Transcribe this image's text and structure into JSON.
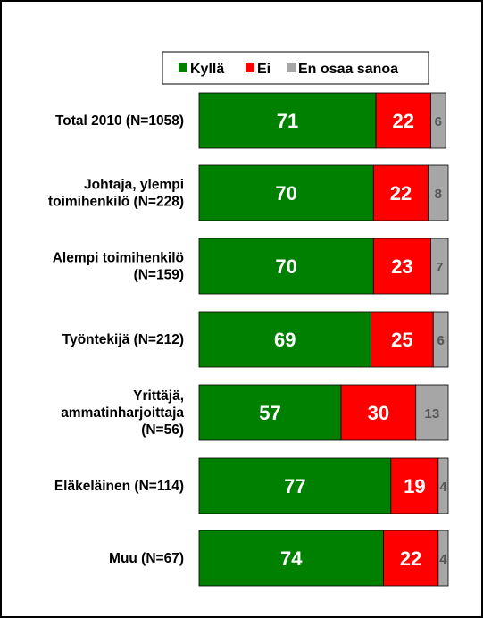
{
  "chart_data": {
    "type": "bar",
    "orientation": "horizontal",
    "stacked": true,
    "legend_position": "top-right",
    "grid": false,
    "xlim": [
      0,
      100
    ],
    "colors": {
      "Kyllä": "#008000",
      "Ei": "#ff0000",
      "En osaa sanoa": "#a6a6a6"
    },
    "categories": [
      "Total 2010 (N=1058)",
      "Johtaja, ylempi toimihenkilö (N=228)",
      "Alempi toimihenkilö (N=159)",
      "Työntekijä (N=212)",
      "Yrittäjä, ammatinharjoittaja (N=56)",
      "Eläkeläinen (N=114)",
      "Muu (N=67)"
    ],
    "category_lines": [
      [
        "Total 2010 (N=1058)"
      ],
      [
        "Johtaja, ylempi",
        "toimihenkilö (N=228)"
      ],
      [
        "Alempi toimihenkilö",
        "(N=159)"
      ],
      [
        "Työntekijä (N=212)"
      ],
      [
        "Yrittäjä,",
        "ammatinharjoittaja",
        "(N=56)"
      ],
      [
        "Eläkeläinen (N=114)"
      ],
      [
        "Muu (N=67)"
      ]
    ],
    "series": [
      {
        "name": "Kyllä",
        "values": [
          71,
          70,
          70,
          69,
          57,
          77,
          74
        ]
      },
      {
        "name": "Ei",
        "values": [
          22,
          22,
          23,
          25,
          30,
          19,
          22
        ]
      },
      {
        "name": "En osaa sanoa",
        "values": [
          6,
          8,
          7,
          6,
          13,
          4,
          4
        ]
      }
    ]
  }
}
